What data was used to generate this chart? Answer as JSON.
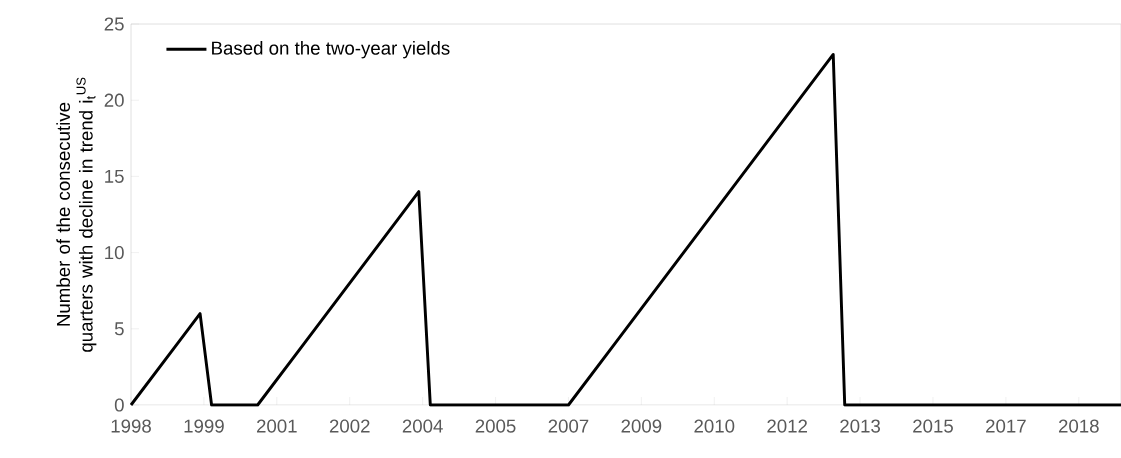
{
  "chart_data": {
    "type": "line",
    "ylabel": "Number of the consecutive quarters with decline in trend i$_{t}$$^{US}$",
    "x": [
      "1998-01",
      "1998-04",
      "1998-07",
      "1998-10",
      "1999-01",
      "1999-04",
      "1999-07",
      "1999-10",
      "2000-01",
      "2000-04",
      "2000-07",
      "2000-10",
      "2001-01",
      "2001-04",
      "2001-07",
      "2001-10",
      "2002-01",
      "2002-04",
      "2002-07",
      "2002-10",
      "2003-01",
      "2003-04",
      "2003-07",
      "2003-10",
      "2004-01",
      "2004-04",
      "2004-07",
      "2004-10",
      "2005-01",
      "2005-04",
      "2005-07",
      "2005-10",
      "2006-01",
      "2006-04",
      "2006-07",
      "2006-10",
      "2007-01",
      "2007-04",
      "2007-07",
      "2007-10",
      "2008-01",
      "2008-04",
      "2008-07",
      "2008-10",
      "2009-01",
      "2009-04",
      "2009-07",
      "2009-10",
      "2010-01",
      "2010-04",
      "2010-07",
      "2010-10",
      "2011-01",
      "2011-04",
      "2011-07",
      "2011-10",
      "2012-01",
      "2012-04",
      "2012-07",
      "2012-10",
      "2013-01",
      "2013-04",
      "2013-07",
      "2013-10",
      "2014-01",
      "2014-04",
      "2014-07",
      "2014-10",
      "2015-01",
      "2015-04",
      "2015-07",
      "2015-10",
      "2016-01",
      "2016-04",
      "2016-07",
      "2016-10",
      "2017-01",
      "2017-04",
      "2017-07",
      "2017-10",
      "2018-01",
      "2018-04",
      "2018-07",
      "2018-10",
      "2019-01",
      "2019-04",
      "2019-07"
    ],
    "series": [
      {
        "name": "Based on the two-year yields",
        "color": "#000000",
        "values": [
          0,
          1,
          2,
          3,
          4,
          5,
          6,
          0,
          0,
          0,
          0,
          0,
          1,
          2,
          3,
          4,
          5,
          6,
          7,
          8,
          9,
          10,
          11,
          12,
          13,
          14,
          0,
          0,
          0,
          0,
          0,
          0,
          0,
          0,
          0,
          0,
          0,
          0,
          0,
          1,
          2,
          3,
          4,
          5,
          6,
          7,
          8,
          9,
          10,
          11,
          12,
          13,
          14,
          15,
          16,
          17,
          18,
          19,
          20,
          21,
          22,
          23,
          0,
          0,
          0,
          0,
          0,
          0,
          0,
          0,
          0,
          0,
          0,
          0,
          0,
          0,
          0,
          0,
          0,
          0,
          0,
          0,
          0,
          0,
          0,
          0,
          0
        ]
      }
    ],
    "xlim": [
      "1998-01",
      "2019-07"
    ],
    "xticks": [
      {
        "value": "1998-01",
        "label": "1998"
      },
      {
        "value": "1999-08",
        "label": "1999"
      },
      {
        "value": "2001-03",
        "label": "2001"
      },
      {
        "value": "2002-10",
        "label": "2002"
      },
      {
        "value": "2004-05",
        "label": "2004"
      },
      {
        "value": "2005-12",
        "label": "2005"
      },
      {
        "value": "2007-07",
        "label": "2007"
      },
      {
        "value": "2009-02",
        "label": "2009"
      },
      {
        "value": "2010-09",
        "label": "2010"
      },
      {
        "value": "2012-04",
        "label": "2012"
      },
      {
        "value": "2013-11",
        "label": "2013"
      },
      {
        "value": "2015-06",
        "label": "2015"
      },
      {
        "value": "2017-01",
        "label": "2017"
      },
      {
        "value": "2018-08",
        "label": "2018"
      }
    ],
    "ylim": [
      0,
      25
    ],
    "yticks": [
      0,
      5,
      10,
      15,
      20,
      25
    ],
    "grid": false,
    "legend": "top left"
  }
}
